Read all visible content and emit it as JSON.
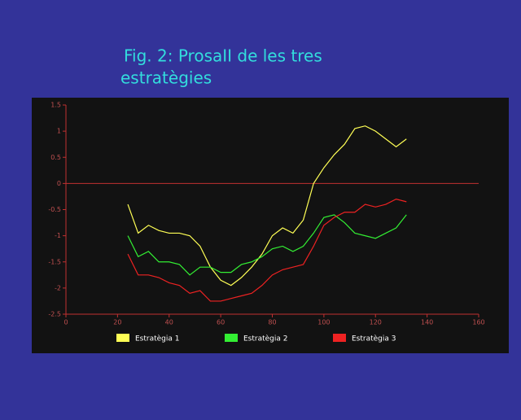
{
  "chart_data": {
    "type": "line",
    "title": [
      "Fig. 2: ProsaII de les tres",
      "estratègies"
    ],
    "x": [
      24,
      28,
      32,
      36,
      40,
      44,
      48,
      52,
      56,
      60,
      64,
      68,
      72,
      76,
      80,
      84,
      88,
      92,
      96,
      100,
      104,
      108,
      112,
      116,
      120,
      124,
      128,
      132
    ],
    "series": [
      {
        "name": "Estratègia 1",
        "color": "#ffff55",
        "values": [
          -0.4,
          -0.95,
          -0.8,
          -0.9,
          -0.95,
          -0.95,
          -1.0,
          -1.2,
          -1.6,
          -1.85,
          -1.95,
          -1.8,
          -1.6,
          -1.35,
          -1.0,
          -0.85,
          -0.95,
          -0.7,
          0.0,
          0.3,
          0.55,
          0.75,
          1.05,
          1.1,
          1.0,
          0.85,
          0.7,
          0.85
        ]
      },
      {
        "name": "Estratègia 2",
        "color": "#33ee33",
        "values": [
          -1.0,
          -1.4,
          -1.3,
          -1.5,
          -1.5,
          -1.55,
          -1.75,
          -1.6,
          -1.6,
          -1.7,
          -1.7,
          -1.55,
          -1.5,
          -1.4,
          -1.25,
          -1.2,
          -1.3,
          -1.2,
          -0.95,
          -0.65,
          -0.6,
          -0.75,
          -0.95,
          -1.0,
          -1.05,
          -0.95,
          -0.85,
          -0.6
        ]
      },
      {
        "name": "Estratègia 3",
        "color": "#ee2222",
        "values": [
          -1.35,
          -1.75,
          -1.75,
          -1.8,
          -1.9,
          -1.95,
          -2.1,
          -2.05,
          -2.25,
          -2.25,
          -2.2,
          -2.15,
          -2.1,
          -1.95,
          -1.75,
          -1.65,
          -1.6,
          -1.55,
          -1.2,
          -0.8,
          -0.65,
          -0.55,
          -0.55,
          -0.4,
          -0.45,
          -0.4,
          -0.3,
          -0.35
        ]
      }
    ],
    "xlim": [
      0,
      160
    ],
    "xticks": [
      0,
      20,
      40,
      60,
      80,
      100,
      120,
      140,
      160
    ],
    "ylim": [
      -2.5,
      1.5
    ],
    "yticks": [
      -2.5,
      -2,
      -1.5,
      -1,
      -0.5,
      0,
      0.5,
      1,
      1.5
    ],
    "reference_line": 0,
    "axis_color": "#c03030",
    "legend": "bottom"
  }
}
